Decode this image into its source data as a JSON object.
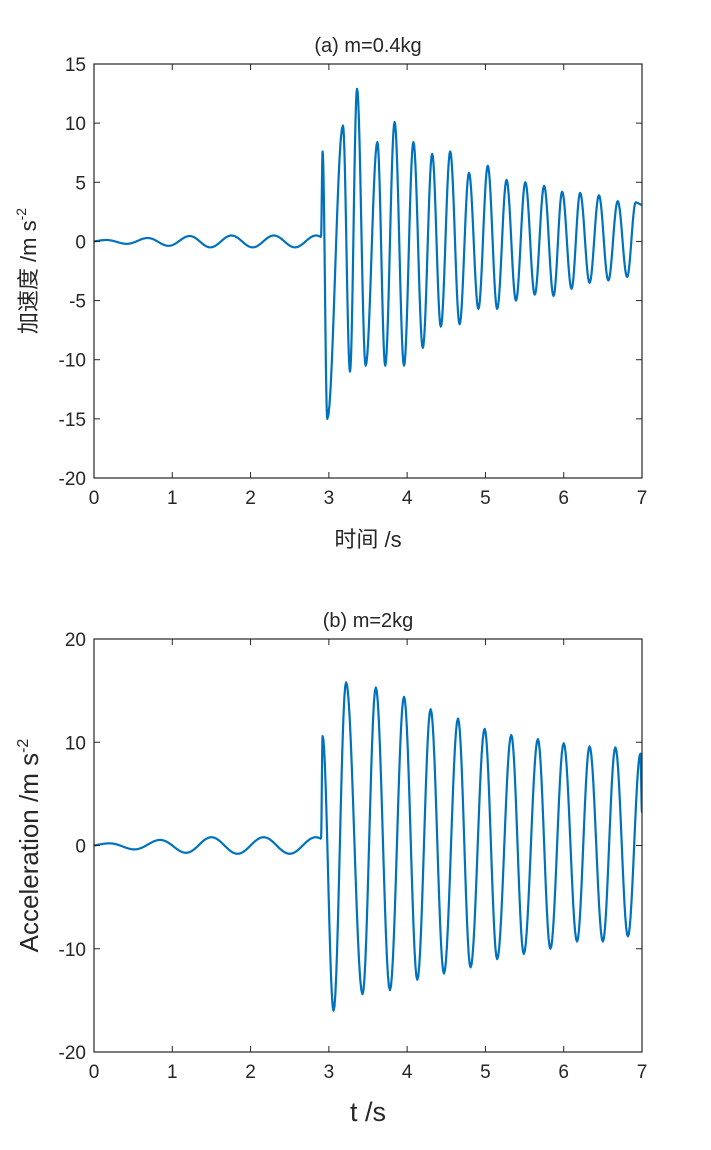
{
  "colors": {
    "series": "#0072BD",
    "axes": "#262626"
  },
  "chart_data": [
    {
      "type": "line",
      "title": "(a) m=0.4kg",
      "xlabel": "时间 /s",
      "ylabel": "加速度 /m s",
      "ylabel_sup": "-2",
      "xlim": [
        0,
        7
      ],
      "ylim": [
        -20,
        15
      ],
      "xticks": [
        0,
        1,
        2,
        3,
        4,
        5,
        6,
        7
      ],
      "yticks": [
        -20,
        -15,
        -10,
        -5,
        0,
        5,
        10,
        15
      ],
      "grid": false,
      "series": [
        {
          "pre_impact": {
            "t_start": 0,
            "t_end": 2.9,
            "freq": 1.85,
            "peak_amplitude": 0.5
          },
          "post_impact": {
            "t_start": 2.9,
            "t_end": 7.0,
            "peak_times": [
              2.92,
              3.18,
              3.36,
              3.62,
              3.84,
              4.08,
              4.32,
              4.55,
              4.79,
              5.03,
              5.27,
              5.51,
              5.75,
              5.98,
              6.21,
              6.45,
              6.69,
              6.92
            ],
            "peak_values": [
              7.6,
              9.8,
              12.9,
              8.4,
              10.1,
              8.4,
              7.4,
              7.6,
              5.8,
              6.4,
              5.2,
              5.0,
              4.7,
              4.2,
              4.1,
              3.9,
              3.4,
              3.3
            ],
            "trough_times": [
              2.98,
              3.27,
              3.47,
              3.72,
              3.96,
              4.2,
              4.43,
              4.67,
              4.91,
              5.15,
              5.39,
              5.63,
              5.87,
              6.1,
              6.33,
              6.57,
              6.81
            ],
            "trough_values": [
              -15.0,
              -11.0,
              -10.5,
              -10.5,
              -10.5,
              -9.0,
              -7.2,
              -7.0,
              -5.7,
              -5.7,
              -5.0,
              -4.5,
              -4.6,
              -4.0,
              -3.5,
              -3.3,
              -3.0
            ],
            "end_value": 3.1
          }
        }
      ]
    },
    {
      "type": "line",
      "title": "(b) m=2kg",
      "xlabel": "t /s",
      "ylabel": "Acceleration /m s",
      "ylabel_sup": "-2",
      "xlim": [
        0,
        7
      ],
      "ylim": [
        -20,
        20
      ],
      "xticks": [
        0,
        1,
        2,
        3,
        4,
        5,
        6,
        7
      ],
      "yticks": [
        -20,
        -10,
        0,
        10,
        20
      ],
      "grid": false,
      "series": [
        {
          "pre_impact": {
            "t_start": 0,
            "t_end": 2.9,
            "freq": 1.5,
            "peak_amplitude": 0.8
          },
          "post_impact": {
            "t_start": 2.9,
            "t_end": 7.0,
            "peak_times": [
              2.92,
              3.22,
              3.6,
              3.96,
              4.3,
              4.65,
              4.99,
              5.33,
              5.67,
              6.0,
              6.33,
              6.66,
              6.98
            ],
            "peak_values": [
              10.6,
              15.8,
              15.3,
              14.4,
              13.2,
              12.3,
              11.3,
              10.7,
              10.3,
              9.9,
              9.6,
              9.5,
              8.9
            ],
            "trough_times": [
              3.06,
              3.43,
              3.78,
              4.13,
              4.47,
              4.81,
              5.15,
              5.49,
              5.83,
              6.17,
              6.5,
              6.82
            ],
            "trough_values": [
              -16.0,
              -14.4,
              -14.0,
              -13.0,
              -12.4,
              -11.8,
              -11.0,
              -10.5,
              -10.0,
              -9.3,
              -9.3,
              -8.8
            ],
            "end_value": 3.2
          }
        }
      ]
    }
  ]
}
